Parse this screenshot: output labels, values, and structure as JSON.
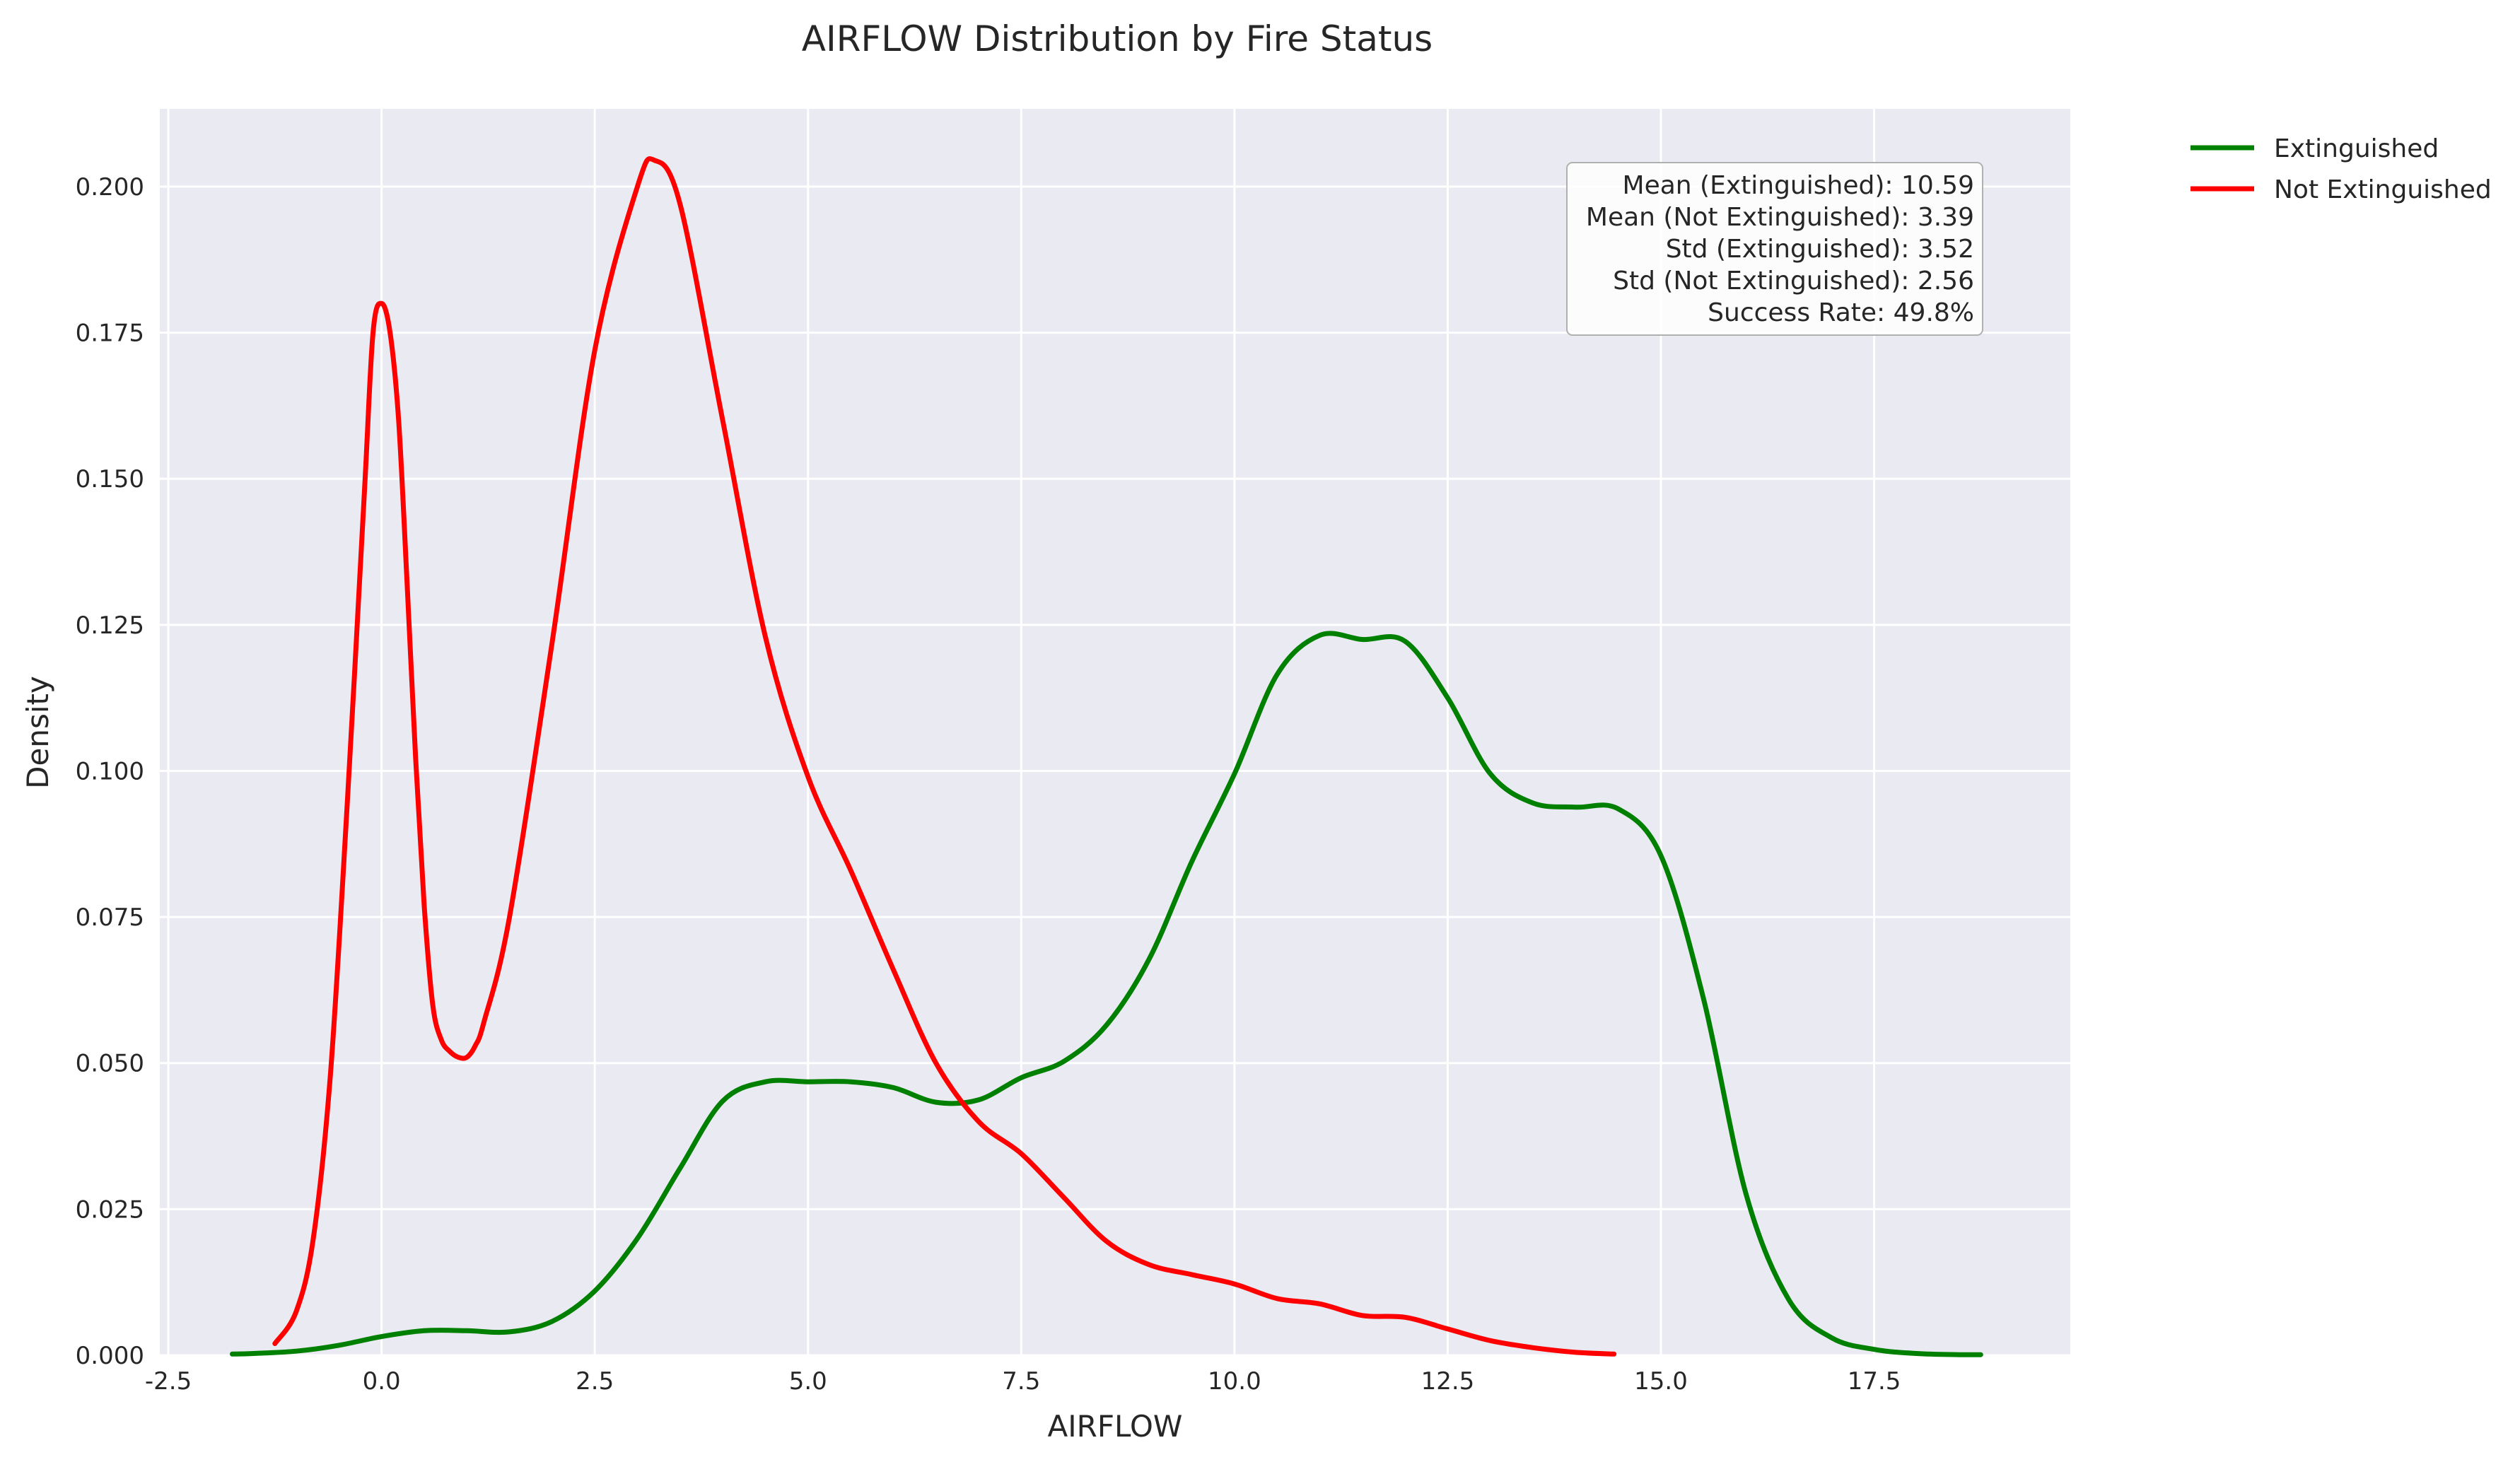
{
  "chart_data": {
    "type": "line",
    "title": "AIRFLOW Distribution by Fire Status",
    "xlabel": "AIRFLOW",
    "ylabel": "Density",
    "xlim": [
      -2.6,
      19.8
    ],
    "ylim": [
      0,
      0.2133
    ],
    "xticks": [
      -2.5,
      0.0,
      2.5,
      5.0,
      7.5,
      10.0,
      12.5,
      15.0,
      17.5
    ],
    "xtick_labels": [
      "-2.5",
      "0.0",
      "2.5",
      "5.0",
      "7.5",
      "10.0",
      "12.5",
      "15.0",
      "17.5"
    ],
    "yticks": [
      0.0,
      0.025,
      0.05,
      0.075,
      0.1,
      0.125,
      0.15,
      0.175,
      0.2
    ],
    "ytick_labels": [
      "0.000",
      "0.025",
      "0.050",
      "0.075",
      "0.100",
      "0.125",
      "0.150",
      "0.175",
      "0.200"
    ],
    "grid": true,
    "background": "#eaeaf2",
    "legend_position": "outside-top-right",
    "series": [
      {
        "name": "Extinguished",
        "color": "#008000",
        "x": [
          -1.75,
          -1.5,
          -1.0,
          -0.5,
          0.0,
          0.5,
          1.0,
          1.5,
          2.0,
          2.5,
          3.0,
          3.5,
          4.0,
          4.5,
          5.0,
          5.5,
          6.0,
          6.5,
          7.0,
          7.5,
          8.0,
          8.5,
          9.0,
          9.5,
          10.0,
          10.5,
          11.0,
          11.5,
          12.0,
          12.5,
          13.0,
          13.5,
          14.0,
          14.5,
          15.0,
          15.5,
          16.0,
          16.5,
          17.0,
          17.5,
          18.0,
          18.5,
          18.75
        ],
        "y": [
          0.0002,
          0.0003,
          0.0007,
          0.0017,
          0.0032,
          0.0042,
          0.0042,
          0.004,
          0.0058,
          0.011,
          0.02,
          0.032,
          0.0435,
          0.0468,
          0.0468,
          0.0468,
          0.0458,
          0.0433,
          0.0437,
          0.0475,
          0.0503,
          0.0565,
          0.0678,
          0.0845,
          0.0995,
          0.1165,
          0.1232,
          0.1225,
          0.1222,
          0.1125,
          0.0995,
          0.0945,
          0.0938,
          0.0935,
          0.0855,
          0.061,
          0.0275,
          0.0095,
          0.003,
          0.001,
          0.0003,
          0.0001,
          0.0001
        ]
      },
      {
        "name": "Not Extinguished",
        "color": "#ff0000",
        "x": [
          -1.25,
          -1.0,
          -0.8,
          -0.6,
          -0.4,
          -0.2,
          -0.1,
          0.0,
          0.1,
          0.2,
          0.3,
          0.4,
          0.5,
          0.6,
          0.7,
          0.8,
          0.9,
          1.0,
          1.1,
          1.2,
          1.5,
          2.0,
          2.5,
          3.0,
          3.2,
          3.5,
          4.0,
          4.5,
          5.0,
          5.5,
          6.0,
          6.5,
          7.0,
          7.5,
          8.0,
          8.5,
          9.0,
          9.5,
          10.0,
          10.5,
          11.0,
          11.5,
          12.0,
          12.5,
          13.0,
          13.5,
          14.0,
          14.45
        ],
        "y": [
          0.002,
          0.0075,
          0.02,
          0.048,
          0.095,
          0.148,
          0.175,
          0.18,
          0.175,
          0.16,
          0.132,
          0.102,
          0.077,
          0.06,
          0.054,
          0.052,
          0.051,
          0.051,
          0.053,
          0.057,
          0.075,
          0.122,
          0.172,
          0.2,
          0.2045,
          0.197,
          0.16,
          0.123,
          0.099,
          0.083,
          0.066,
          0.05,
          0.04,
          0.0345,
          0.027,
          0.0195,
          0.0155,
          0.0138,
          0.0122,
          0.0097,
          0.0088,
          0.0068,
          0.0065,
          0.0045,
          0.0025,
          0.0013,
          0.0005,
          0.0002
        ]
      }
    ],
    "annotation_lines": [
      "Mean (Extinguished): 10.59",
      "Mean (Not Extinguished): 3.39",
      "Std (Extinguished): 3.52",
      "Std (Not Extinguished): 2.56",
      "Success Rate: 49.8%"
    ],
    "stats": {
      "mean_extinguished": 10.59,
      "mean_not_extinguished": 3.39,
      "std_extinguished": 3.52,
      "std_not_extinguished": 2.56,
      "success_rate_percent": 49.8
    }
  }
}
